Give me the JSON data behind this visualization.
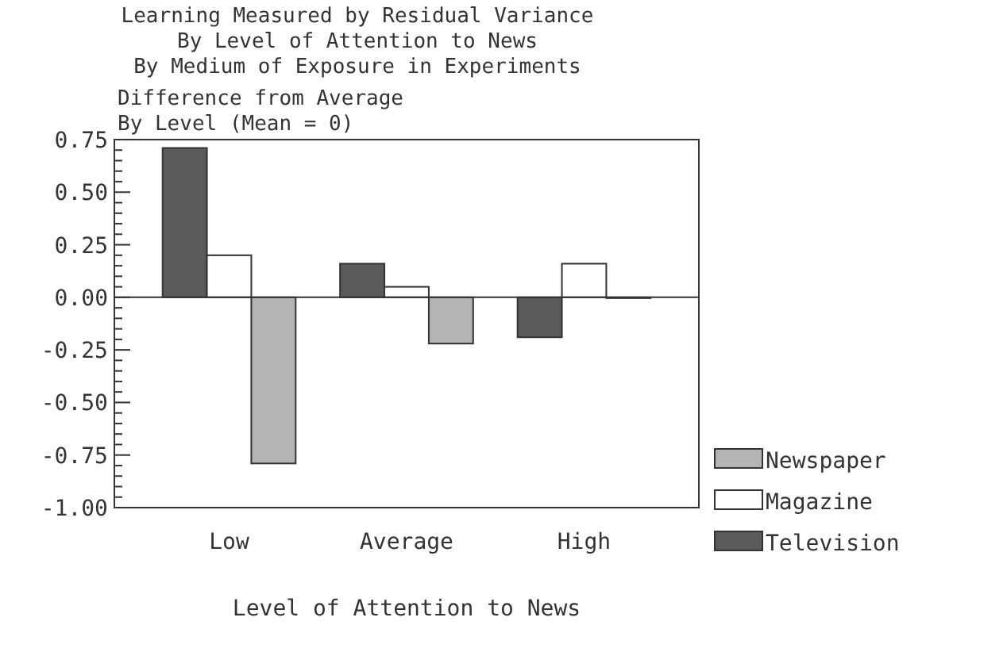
{
  "chart_data": {
    "type": "bar",
    "title": "Learning Measured by Residual Variance\nBy Level of Attention to News\nBy Medium of Exposure in Experiments",
    "ylabel": "Difference from Average\nBy Level (Mean = 0)",
    "xlabel": "Level of Attention to News",
    "categories": [
      "Low",
      "Average",
      "High"
    ],
    "series": [
      {
        "name": "Television",
        "color": "#5a5a5a",
        "values": [
          0.71,
          0.16,
          -0.19
        ]
      },
      {
        "name": "Magazine",
        "color": "#ffffff",
        "values": [
          0.2,
          0.05,
          0.16
        ]
      },
      {
        "name": "Newspaper",
        "color": "#b4b4b4",
        "values": [
          -0.79,
          -0.22,
          0
        ]
      }
    ],
    "ylim": [
      -1,
      0.75
    ],
    "yticks": [
      {
        "value": -1,
        "label": "-1.00"
      },
      {
        "value": -0.95,
        "label": null
      },
      {
        "value": -0.9,
        "label": null
      },
      {
        "value": -0.85,
        "label": null
      },
      {
        "value": -0.8,
        "label": null
      },
      {
        "value": -0.75,
        "label": "-0.75"
      },
      {
        "value": -0.7,
        "label": null
      },
      {
        "value": -0.65,
        "label": null
      },
      {
        "value": -0.6,
        "label": null
      },
      {
        "value": -0.55,
        "label": null
      },
      {
        "value": -0.5,
        "label": "-0.50"
      },
      {
        "value": -0.45,
        "label": null
      },
      {
        "value": -0.4,
        "label": null
      },
      {
        "value": -0.35,
        "label": null
      },
      {
        "value": -0.3,
        "label": null
      },
      {
        "value": -0.25,
        "label": "-0.25"
      },
      {
        "value": -0.2,
        "label": null
      },
      {
        "value": -0.15,
        "label": null
      },
      {
        "value": -0.1,
        "label": null
      },
      {
        "value": -0.05,
        "label": null
      },
      {
        "value": 0,
        "label": "0.00"
      },
      {
        "value": 0.05,
        "label": null
      },
      {
        "value": 0.1,
        "label": null
      },
      {
        "value": 0.15,
        "label": null
      },
      {
        "value": 0.2,
        "label": null
      },
      {
        "value": 0.25,
        "label": "0.25"
      },
      {
        "value": 0.3,
        "label": null
      },
      {
        "value": 0.35,
        "label": null
      },
      {
        "value": 0.4,
        "label": null
      },
      {
        "value": 0.45,
        "label": null
      },
      {
        "value": 0.5,
        "label": "0.50"
      },
      {
        "value": 0.55,
        "label": null
      },
      {
        "value": 0.6,
        "label": null
      },
      {
        "value": 0.65,
        "label": null
      },
      {
        "value": 0.7,
        "label": null
      },
      {
        "value": 0.75,
        "label": "0.75"
      }
    ],
    "legend": "bottom right"
  }
}
